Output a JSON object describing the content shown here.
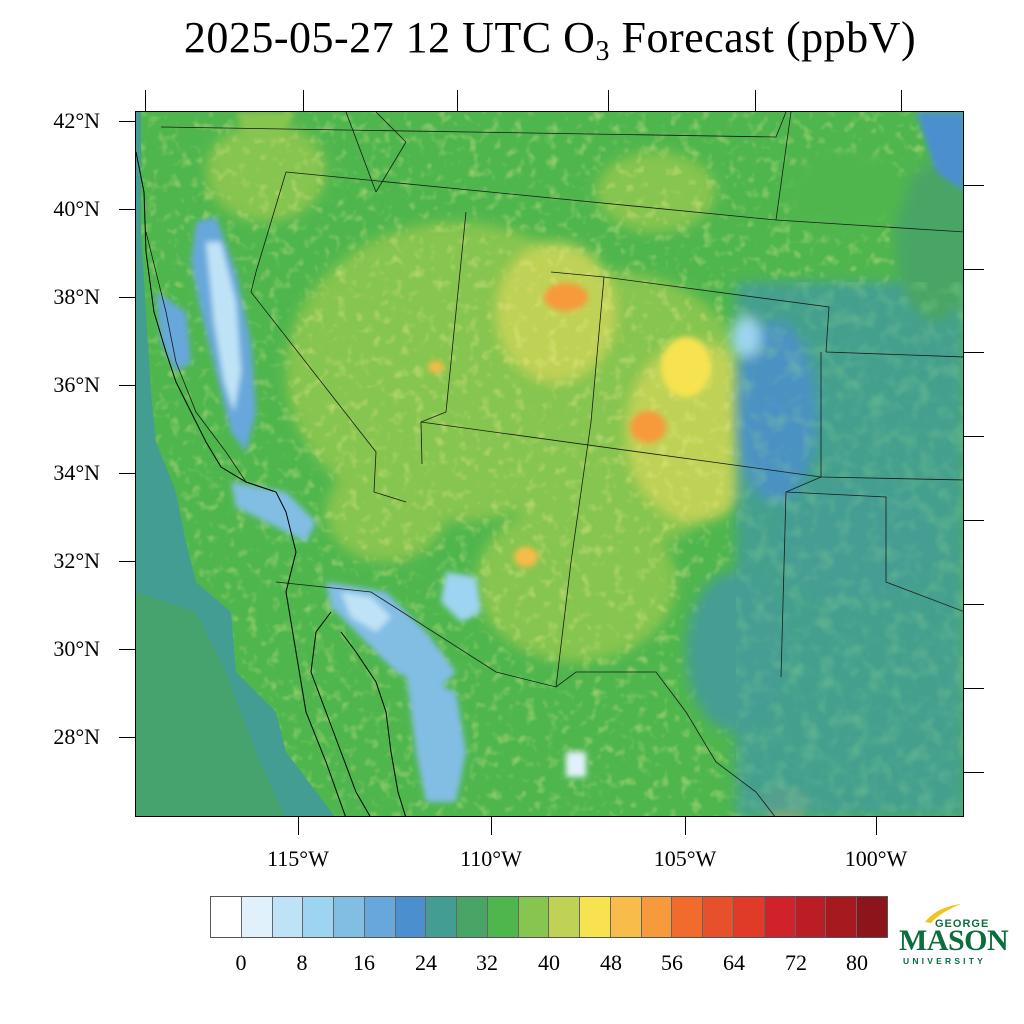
{
  "title": {
    "prefix": "2025-05-27 12 UTC O",
    "subscript": "3",
    "suffix": " Forecast (ppbV)"
  },
  "map": {
    "region": "Western United States and northern Mexico",
    "lat_labels": [
      "42°N",
      "40°N",
      "38°N",
      "36°N",
      "34°N",
      "32°N",
      "30°N",
      "28°N"
    ],
    "lon_labels": [
      "115°W",
      "110°W",
      "105°W",
      "100°W"
    ]
  },
  "colorbar": {
    "labels": [
      "0",
      "8",
      "16",
      "24",
      "32",
      "40",
      "48",
      "56",
      "64",
      "72",
      "80"
    ],
    "colors": [
      "#ffffff",
      "#e1f1fb",
      "#bfe3f6",
      "#9dd4f1",
      "#82bde4",
      "#68a7db",
      "#4b8fcf",
      "#449d93",
      "#48a565",
      "#4fb64e",
      "#86c54f",
      "#bfd256",
      "#f6e34f",
      "#f7bc49",
      "#f79a3b",
      "#f06b2c",
      "#e6502a",
      "#df3b28",
      "#d0222a",
      "#bb1d24",
      "#a5191f",
      "#8c141a"
    ]
  },
  "logo": {
    "line1": "GEORGE",
    "line2": "MASON",
    "line3": "UNIVERSITY",
    "color": "#0b6e3c",
    "accent": "#f3c21c"
  }
}
